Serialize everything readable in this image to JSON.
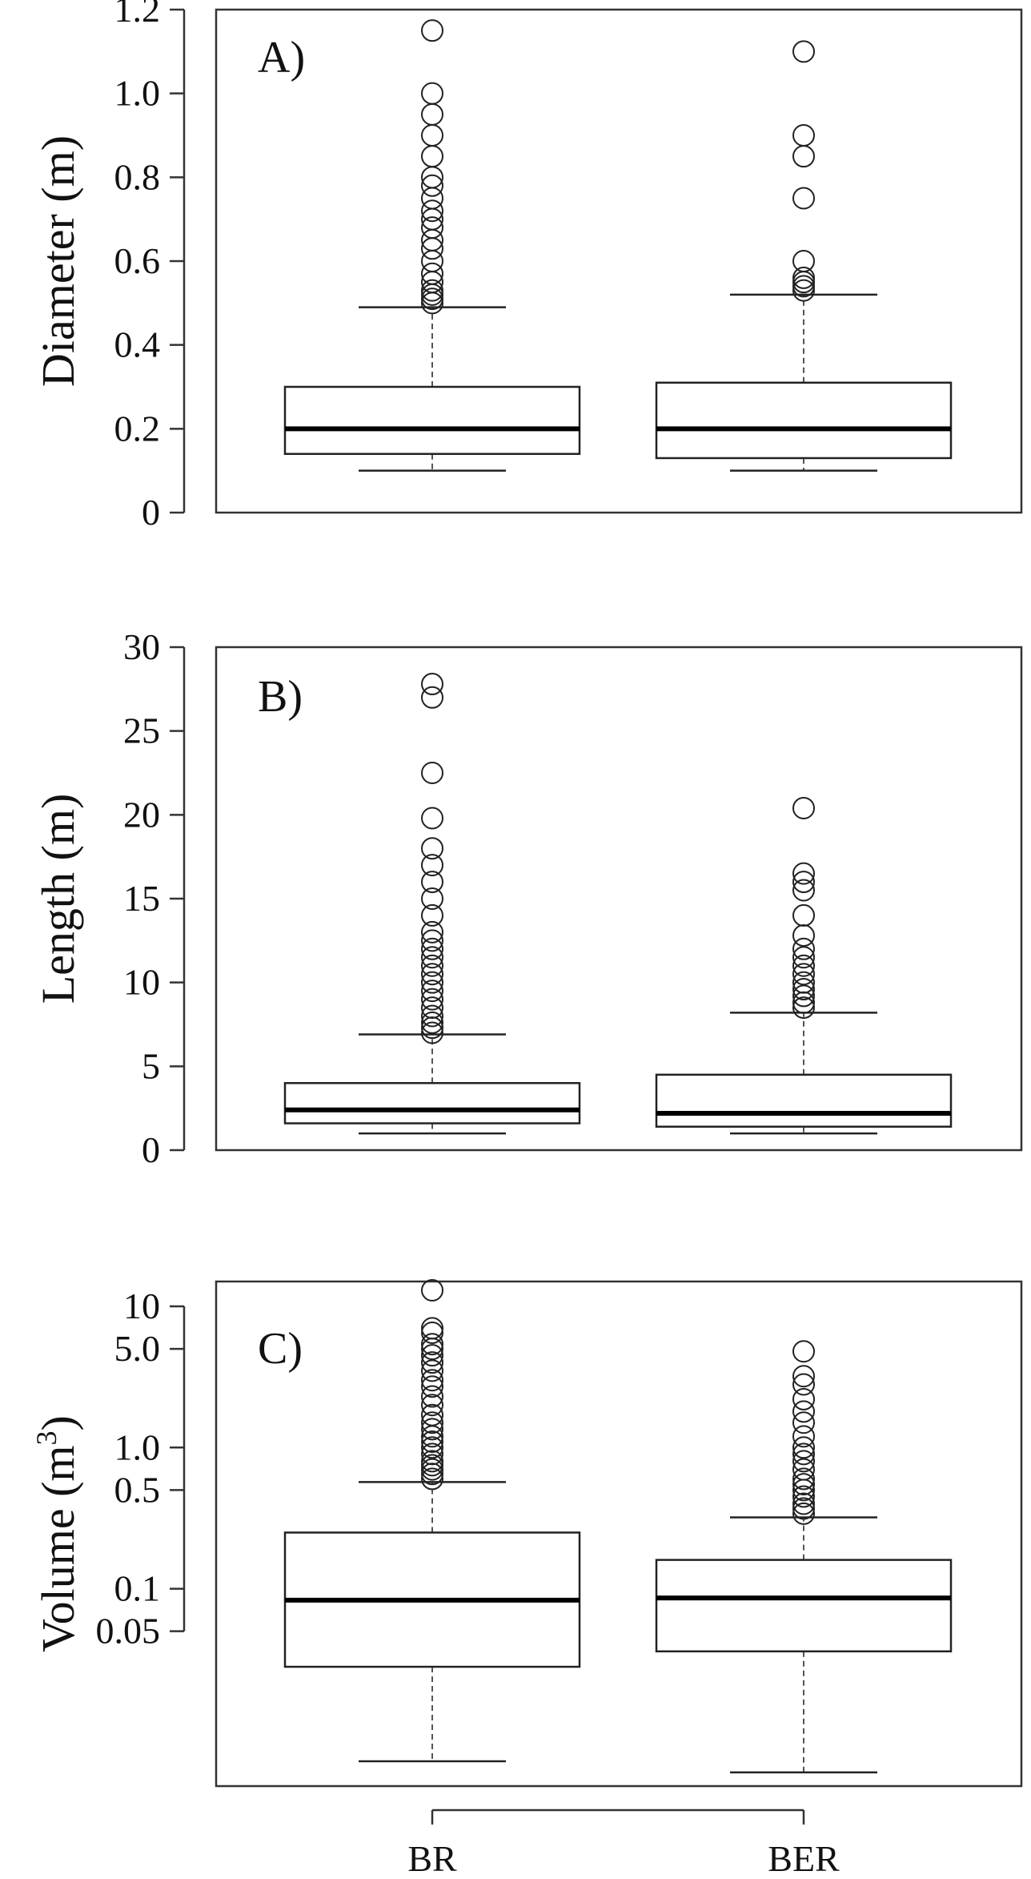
{
  "chart_data": [
    {
      "type": "boxplot",
      "panel_label": "A)",
      "ylabel": "Diameter (m)",
      "scale": "linear",
      "ylim": [
        0,
        1.2
      ],
      "yticks": [
        0,
        0.2,
        0.4,
        0.6,
        0.8,
        1.0,
        1.2
      ],
      "ytick_labels": [
        "0",
        "0.2",
        "0.4",
        "0.6",
        "0.8",
        "1.0",
        "1.2"
      ],
      "categories": [
        "BR",
        "BER"
      ],
      "series": [
        {
          "whisker_low": 0.1,
          "q1": 0.14,
          "median": 0.2,
          "q3": 0.3,
          "whisker_high": 0.49,
          "outliers": [
            0.5,
            0.51,
            0.52,
            0.53,
            0.55,
            0.57,
            0.6,
            0.63,
            0.65,
            0.68,
            0.7,
            0.72,
            0.75,
            0.78,
            0.8,
            0.85,
            0.9,
            0.95,
            1.0,
            1.15
          ]
        },
        {
          "whisker_low": 0.1,
          "q1": 0.13,
          "median": 0.2,
          "q3": 0.31,
          "whisker_high": 0.52,
          "outliers": [
            0.53,
            0.54,
            0.55,
            0.56,
            0.6,
            0.75,
            0.85,
            0.9,
            1.1
          ]
        }
      ]
    },
    {
      "type": "boxplot",
      "panel_label": "B)",
      "ylabel": "Length (m)",
      "scale": "linear",
      "ylim": [
        0,
        30
      ],
      "yticks": [
        0,
        5,
        10,
        15,
        20,
        25,
        30
      ],
      "ytick_labels": [
        "0",
        "5",
        "10",
        "15",
        "20",
        "25",
        "30"
      ],
      "categories": [
        "BR",
        "BER"
      ],
      "series": [
        {
          "whisker_low": 1.0,
          "q1": 1.6,
          "median": 2.4,
          "q3": 4.0,
          "whisker_high": 6.9,
          "outliers": [
            7.0,
            7.3,
            7.6,
            8.0,
            8.5,
            9.0,
            9.5,
            10.0,
            10.5,
            11.0,
            11.5,
            12.0,
            12.5,
            13.0,
            14.0,
            15.0,
            16.0,
            17.0,
            18.0,
            19.8,
            22.5,
            27.0,
            27.8
          ]
        },
        {
          "whisker_low": 1.0,
          "q1": 1.4,
          "median": 2.2,
          "q3": 4.5,
          "whisker_high": 8.2,
          "outliers": [
            8.5,
            8.8,
            9.2,
            9.6,
            10.0,
            10.5,
            11.0,
            11.5,
            12.0,
            12.8,
            14.0,
            15.5,
            16.0,
            16.5,
            20.4
          ]
        }
      ]
    },
    {
      "type": "boxplot",
      "panel_label": "C)",
      "ylabel": "Volume  (m",
      "ylabel_sup": "3",
      "ylabel_close": ")",
      "scale": "log",
      "ylim": [
        0.004,
        15
      ],
      "yticks": [
        0.05,
        0.1,
        0.5,
        1.0,
        5.0,
        10
      ],
      "ytick_labels": [
        "0.05",
        "0.1",
        "0.5",
        "1.0",
        "5.0",
        "10"
      ],
      "categories": [
        "BR",
        "BER"
      ],
      "series": [
        {
          "whisker_low": 0.006,
          "q1": 0.028,
          "median": 0.083,
          "q3": 0.25,
          "whisker_high": 0.57,
          "outliers": [
            0.6,
            0.65,
            0.7,
            0.75,
            0.8,
            0.9,
            1.0,
            1.1,
            1.2,
            1.35,
            1.5,
            1.7,
            2.0,
            2.3,
            2.7,
            3.0,
            3.5,
            4.0,
            4.5,
            5.0,
            5.4,
            6.5,
            7.0,
            13.0
          ]
        },
        {
          "whisker_low": 0.005,
          "q1": 0.036,
          "median": 0.086,
          "q3": 0.16,
          "whisker_high": 0.32,
          "outliers": [
            0.34,
            0.37,
            0.4,
            0.45,
            0.5,
            0.55,
            0.6,
            0.7,
            0.8,
            0.9,
            1.0,
            1.2,
            1.5,
            1.8,
            2.2,
            2.8,
            3.2,
            4.8
          ]
        }
      ]
    }
  ]
}
